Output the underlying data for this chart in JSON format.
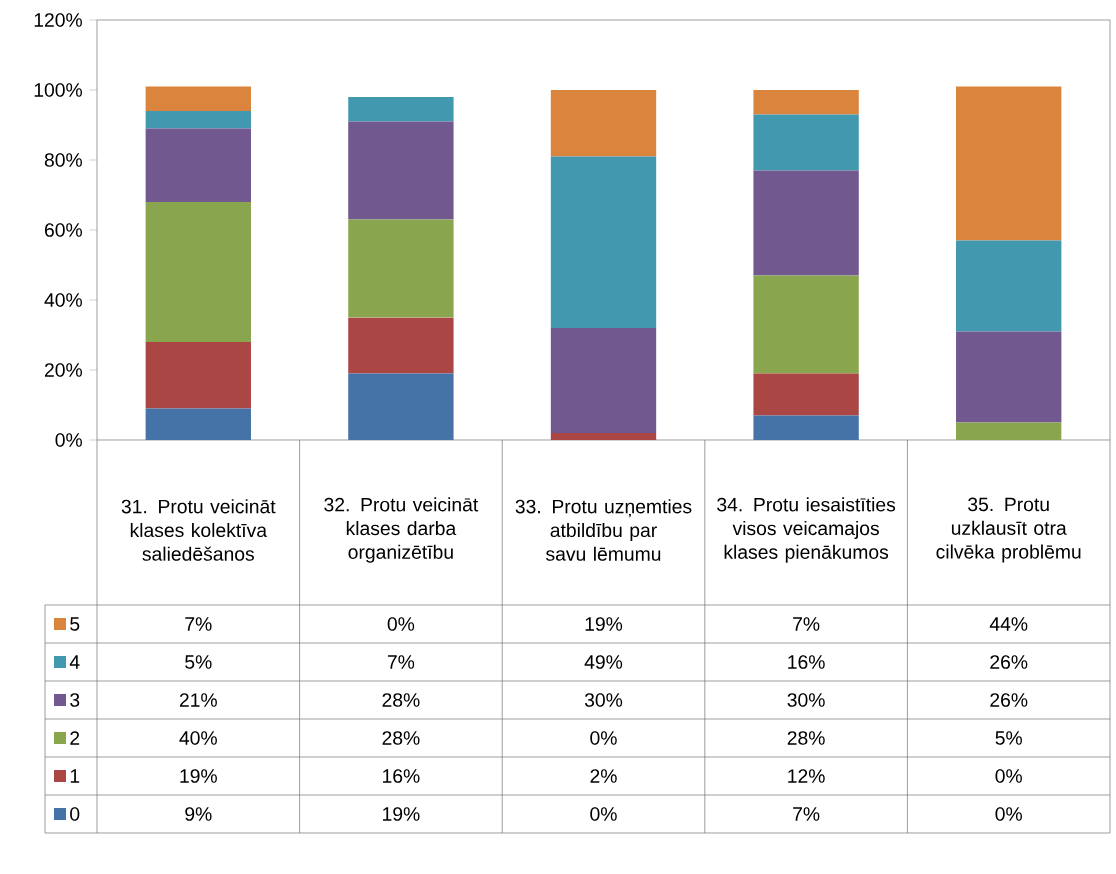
{
  "chart_data": {
    "type": "bar",
    "stacked": true,
    "legend": "bottom left",
    "categories": [
      "31. Protu veicināt klases kolektīva saliedēšanos",
      "32. Protu veicināt klases darba organizētību",
      "33. Protu uzņemties atbildību par savu lēmumu",
      "34. Protu iesaistīties visos veicamajos klases pienākumos",
      "35. Protu uzklausīt otra cilvēka problēmu"
    ],
    "ylim": [
      0,
      120
    ],
    "yticks": [
      {
        "value": 0,
        "label": "0%"
      },
      {
        "value": 20,
        "label": "20%"
      },
      {
        "value": 40,
        "label": "40%"
      },
      {
        "value": 60,
        "label": "60%"
      },
      {
        "value": 80,
        "label": "80%"
      },
      {
        "value": 100,
        "label": "100%"
      },
      {
        "value": 120,
        "label": "120%"
      }
    ],
    "series": [
      {
        "name": "0",
        "color": "#4572a7",
        "values": [
          9,
          19,
          0,
          7,
          0
        ],
        "value_labels": [
          "9%",
          "19%",
          "0%",
          "7%",
          "0%"
        ]
      },
      {
        "name": "1",
        "color": "#aa4643",
        "values": [
          19,
          16,
          2,
          12,
          0
        ],
        "value_labels": [
          "19%",
          "16%",
          "2%",
          "12%",
          "0%"
        ]
      },
      {
        "name": "2",
        "color": "#89a54e",
        "values": [
          40,
          28,
          0,
          28,
          5
        ],
        "value_labels": [
          "40%",
          "28%",
          "0%",
          "28%",
          "5%"
        ]
      },
      {
        "name": "3",
        "color": "#71588f",
        "values": [
          21,
          28,
          30,
          30,
          26
        ],
        "value_labels": [
          "21%",
          "28%",
          "30%",
          "30%",
          "26%"
        ]
      },
      {
        "name": "4",
        "color": "#4198af",
        "values": [
          5,
          7,
          49,
          16,
          26
        ],
        "value_labels": [
          "5%",
          "7%",
          "49%",
          "16%",
          "26%"
        ]
      },
      {
        "name": "5",
        "color": "#db843d",
        "values": [
          7,
          0,
          19,
          7,
          44
        ],
        "value_labels": [
          "7%",
          "0%",
          "19%",
          "7%",
          "44%"
        ]
      }
    ]
  }
}
